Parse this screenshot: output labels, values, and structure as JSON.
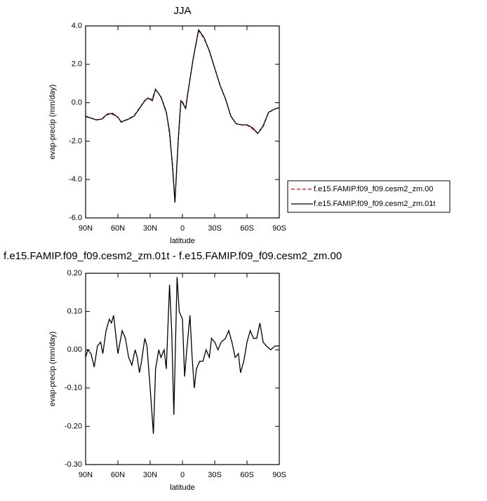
{
  "chart_data": [
    {
      "type": "line",
      "title": "JJA",
      "x_label": "latitude",
      "y_label": "evap-precip (mm/day)",
      "xlim": [
        90,
        -90
      ],
      "xticks": [
        {
          "value": 90,
          "label": "90N"
        },
        {
          "value": 60,
          "label": "60N"
        },
        {
          "value": 30,
          "label": "30N"
        },
        0,
        {
          "value": -30,
          "label": "30S"
        },
        {
          "value": -60,
          "label": "60S"
        },
        {
          "value": -90,
          "label": "90S"
        }
      ],
      "ylim": [
        -6,
        4
      ],
      "yticks": [
        {
          "value": 4,
          "label": "4.0"
        },
        {
          "value": 2,
          "label": "2.0"
        },
        {
          "value": 0,
          "label": "0.0"
        },
        {
          "value": -2,
          "label": "-2.0"
        },
        {
          "value": -4,
          "label": "-4.0"
        },
        {
          "value": -6,
          "label": "-6.0"
        }
      ],
      "legend": "right",
      "x": [
        90,
        85,
        80,
        75,
        70,
        65,
        60,
        57,
        50,
        45,
        40,
        35,
        32,
        28,
        25,
        20,
        15,
        12,
        9,
        7,
        4,
        1.5,
        0,
        -3,
        -5,
        -10,
        -15,
        -20,
        -25,
        -30,
        -35,
        -40,
        -45,
        -50,
        -55,
        -60,
        -65,
        -70,
        -75,
        -80,
        -85,
        -90
      ],
      "series": [
        {
          "name": "f.e15.FAMIP.f09_f09.cesm2_zm.00",
          "color": "#e00000",
          "dashed": true,
          "values": [
            -0.72,
            -0.8,
            -0.88,
            -0.86,
            -0.62,
            -0.6,
            -0.76,
            -1.02,
            -0.84,
            -0.68,
            -0.28,
            0.12,
            0.2,
            0.2,
            0.7,
            0.32,
            -0.45,
            -1.65,
            -3.35,
            -5.15,
            -2.1,
            0.0,
            0.05,
            -0.25,
            0.5,
            2.3,
            3.75,
            3.35,
            2.7,
            1.8,
            0.9,
            0.2,
            -0.7,
            -1.1,
            -1.15,
            -1.17,
            -1.35,
            -1.6,
            -1.25,
            -0.52,
            -0.35,
            -0.25
          ]
        },
        {
          "name": "f.e15.FAMIP.f09_f09.cesm2_zm.01t",
          "color": "#000000",
          "dashed": false,
          "values": [
            -0.7,
            -0.8,
            -0.9,
            -0.85,
            -0.6,
            -0.55,
            -0.75,
            -1.0,
            -0.85,
            -0.7,
            -0.3,
            0.1,
            0.25,
            0.1,
            0.7,
            0.3,
            -0.5,
            -1.5,
            -3.5,
            -5.2,
            -2.0,
            0.1,
            0.0,
            -0.3,
            0.5,
            2.3,
            3.8,
            3.4,
            2.7,
            1.8,
            0.9,
            0.2,
            -0.7,
            -1.1,
            -1.15,
            -1.15,
            -1.3,
            -1.6,
            -1.2,
            -0.5,
            -0.35,
            -0.25
          ]
        }
      ]
    },
    {
      "type": "line",
      "title": "f.e15.FAMIP.f09_f09.cesm2_zm.01t - f.e15.FAMIP.f09_f09.cesm2_zm.00",
      "x_label": "latitude",
      "y_label": "evap-precip (mm/day)",
      "xlim": [
        90,
        -90
      ],
      "xticks": [
        {
          "value": 90,
          "label": "90N"
        },
        {
          "value": 60,
          "label": "60N"
        },
        {
          "value": 30,
          "label": "30N"
        },
        0,
        {
          "value": -30,
          "label": "30S"
        },
        {
          "value": -60,
          "label": "60S"
        },
        {
          "value": -90,
          "label": "90S"
        }
      ],
      "ylim": [
        -0.3,
        0.2
      ],
      "yticks": [
        {
          "value": 0.2,
          "label": "0.20"
        },
        {
          "value": 0.1,
          "label": "0.10"
        },
        {
          "value": 0,
          "label": "0.00"
        },
        {
          "value": -0.1,
          "label": "-0.10"
        },
        {
          "value": -0.2,
          "label": "-0.20"
        },
        {
          "value": -0.3,
          "label": "-0.30"
        }
      ],
      "x": [
        90,
        88,
        85,
        82,
        79,
        76,
        74,
        71,
        68,
        66,
        64,
        62,
        60,
        58,
        56,
        53,
        50,
        47,
        44,
        42,
        40,
        38,
        35,
        33,
        30,
        27,
        25,
        22,
        20,
        17,
        15,
        12,
        10,
        8,
        5,
        3,
        0,
        -2,
        -4,
        -7,
        -9,
        -11,
        -13,
        -16,
        -19,
        -22,
        -25,
        -27,
        -30,
        -33,
        -36,
        -40,
        -43,
        -46,
        -49,
        -52,
        -54,
        -57,
        -60,
        -63,
        -66,
        -69,
        -72,
        -75,
        -78,
        -82,
        -86,
        -90
      ],
      "series": [
        {
          "color": "#000000",
          "dashed": false,
          "values": [
            -0.02,
            0,
            -0.01,
            -0.045,
            0.01,
            0.02,
            -0.01,
            0.05,
            0.08,
            0.07,
            0.09,
            0.04,
            -0.01,
            0.02,
            0.05,
            0.03,
            -0.02,
            -0.04,
            0,
            -0.02,
            -0.06,
            -0.03,
            0.03,
            0.01,
            -0.1,
            -0.22,
            -0.05,
            0,
            -0.02,
            0,
            -0.05,
            0.17,
            0.05,
            -0.17,
            0.19,
            0.1,
            0.08,
            -0.07,
            0,
            0.09,
            -0.02,
            -0.1,
            -0.05,
            -0.03,
            -0.03,
            0,
            -0.02,
            0.03,
            0.02,
            0,
            0.02,
            0.03,
            0.05,
            0.02,
            -0.02,
            -0.01,
            -0.06,
            -0.03,
            0.02,
            0.05,
            0.03,
            0.03,
            0.07,
            0.02,
            0.01,
            0,
            0.01,
            0.01
          ]
        }
      ]
    }
  ]
}
